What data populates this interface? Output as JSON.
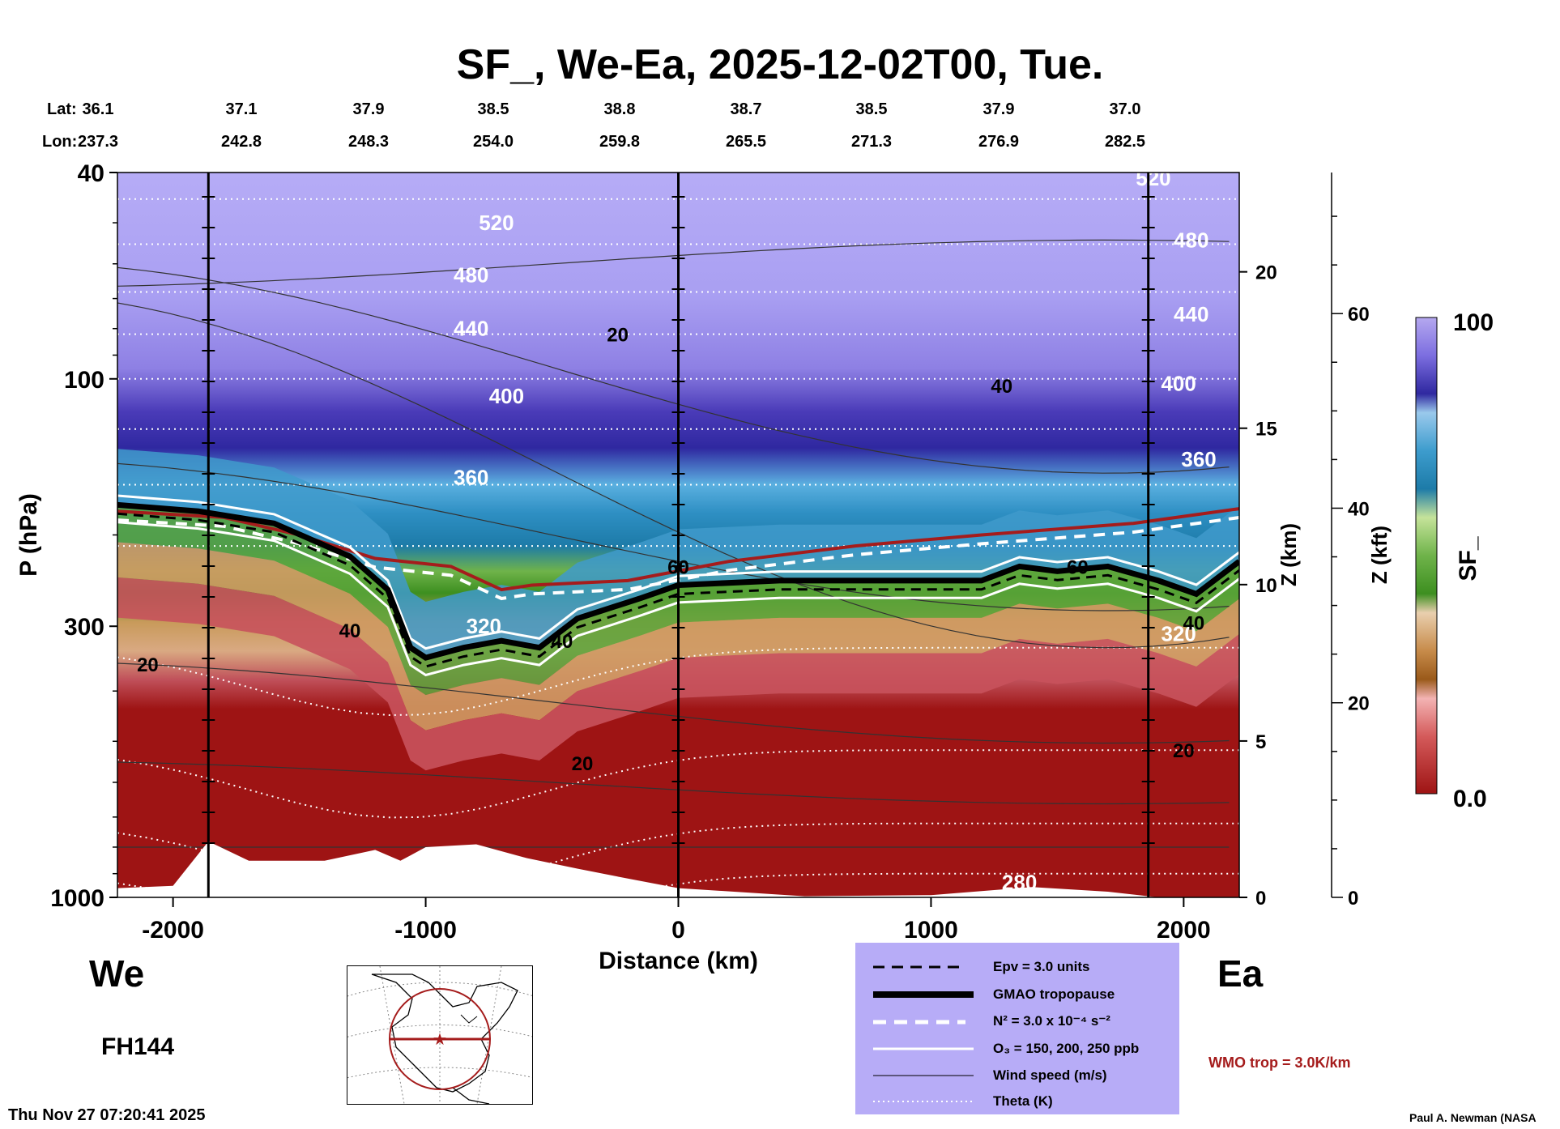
{
  "chart_data": {
    "type": "heatmap",
    "title": "SF_, We-Ea, 2025-12-02T00, Tue.",
    "xlabel": "Distance (km)",
    "ylabel": "P (hPa)",
    "y2label": "Z (km)",
    "y3label": "Z (kft)",
    "colorbar_label": "SF_",
    "colorbar_range": [
      0.0,
      100
    ],
    "colorbar_labels": [
      "100",
      "0.0"
    ],
    "xlim": [
      -2220,
      2220
    ],
    "ylim": [
      1000,
      40
    ],
    "y_scale": "log",
    "x_ticks": [
      -2000,
      -1000,
      0,
      1000,
      2000
    ],
    "x_tick_labels": [
      "-2000",
      "-1000",
      "0",
      "1000",
      "2000"
    ],
    "y_ticks": [
      40,
      100,
      300,
      1000
    ],
    "y_tick_labels": [
      "40",
      "100",
      "300",
      "1000"
    ],
    "z_km_ticks": [
      0,
      5,
      10,
      15,
      20
    ],
    "z_km_tick_labels": [
      "0",
      "5",
      "10",
      "15",
      "20"
    ],
    "z_kft_ticks": [
      0,
      20,
      40,
      60
    ],
    "z_kft_tick_labels": [
      "0",
      "20",
      "40",
      "60"
    ],
    "lat_label": "Lat:",
    "lon_label": "Lon:",
    "lats": [
      "36.1",
      "37.1",
      "37.9",
      "38.5",
      "38.8",
      "38.7",
      "38.5",
      "37.9",
      "37.0"
    ],
    "lons": [
      "237.3",
      "242.8",
      "248.3",
      "254.0",
      "259.8",
      "265.5",
      "271.3",
      "276.9",
      "282.5"
    ],
    "theta_labels": [
      {
        "text": "520",
        "x": -720,
        "p": 50
      },
      {
        "text": "480",
        "x": -820,
        "p": 63
      },
      {
        "text": "440",
        "x": -820,
        "p": 80
      },
      {
        "text": "400",
        "x": -680,
        "p": 108
      },
      {
        "text": "360",
        "x": -820,
        "p": 155
      },
      {
        "text": "320",
        "x": -770,
        "p": 300
      },
      {
        "text": "280",
        "x": 1350,
        "p": 935
      },
      {
        "text": "520",
        "x": 1880,
        "p": 41
      },
      {
        "text": "480",
        "x": 2030,
        "p": 54
      },
      {
        "text": "440",
        "x": 2030,
        "p": 75
      },
      {
        "text": "400",
        "x": 1980,
        "p": 102
      },
      {
        "text": "360",
        "x": 2060,
        "p": 143
      },
      {
        "text": "320",
        "x": 1980,
        "p": 310
      }
    ],
    "wind_labels": [
      {
        "text": "20",
        "x": -240,
        "p": 82
      },
      {
        "text": "40",
        "x": 1280,
        "p": 103
      },
      {
        "text": "60",
        "x": 1580,
        "p": 230
      },
      {
        "text": "60",
        "x": 0,
        "p": 230
      },
      {
        "text": "40",
        "x": -1300,
        "p": 305
      },
      {
        "text": "40",
        "x": -460,
        "p": 320
      },
      {
        "text": "20",
        "x": -2100,
        "p": 355
      },
      {
        "text": "20",
        "x": -380,
        "p": 550
      },
      {
        "text": "40",
        "x": 2040,
        "p": 295
      },
      {
        "text": "20",
        "x": 2000,
        "p": 520
      }
    ],
    "vertical_markers_km": [
      -1860,
      0,
      1860
    ],
    "surface_profile": [
      {
        "x": -2220,
        "p": 960
      },
      {
        "x": -2000,
        "p": 950
      },
      {
        "x": -1860,
        "p": 780
      },
      {
        "x": -1700,
        "p": 850
      },
      {
        "x": -1400,
        "p": 850
      },
      {
        "x": -1200,
        "p": 810
      },
      {
        "x": -1100,
        "p": 850
      },
      {
        "x": -1000,
        "p": 800
      },
      {
        "x": -800,
        "p": 790
      },
      {
        "x": -600,
        "p": 840
      },
      {
        "x": -400,
        "p": 880
      },
      {
        "x": -200,
        "p": 920
      },
      {
        "x": 0,
        "p": 960
      },
      {
        "x": 500,
        "p": 995
      },
      {
        "x": 1000,
        "p": 990
      },
      {
        "x": 1400,
        "p": 955
      },
      {
        "x": 1700,
        "p": 975
      },
      {
        "x": 1900,
        "p": 1000
      },
      {
        "x": 2220,
        "p": 1000
      }
    ],
    "gmao_tropopause": [
      {
        "x": -2220,
        "p": 175
      },
      {
        "x": -1900,
        "p": 180
      },
      {
        "x": -1600,
        "p": 190
      },
      {
        "x": -1300,
        "p": 220
      },
      {
        "x": -1150,
        "p": 255
      },
      {
        "x": -1060,
        "p": 330
      },
      {
        "x": -1000,
        "p": 345
      },
      {
        "x": -850,
        "p": 330
      },
      {
        "x": -700,
        "p": 320
      },
      {
        "x": -550,
        "p": 330
      },
      {
        "x": -400,
        "p": 290
      },
      {
        "x": -150,
        "p": 265
      },
      {
        "x": 0,
        "p": 250
      },
      {
        "x": 400,
        "p": 245
      },
      {
        "x": 800,
        "p": 245
      },
      {
        "x": 1200,
        "p": 245
      },
      {
        "x": 1350,
        "p": 230
      },
      {
        "x": 1500,
        "p": 235
      },
      {
        "x": 1700,
        "p": 230
      },
      {
        "x": 1900,
        "p": 245
      },
      {
        "x": 2050,
        "p": 260
      },
      {
        "x": 2220,
        "p": 225
      }
    ],
    "wmo_tropopause": [
      {
        "x": -2220,
        "p": 180
      },
      {
        "x": -1800,
        "p": 185
      },
      {
        "x": -1500,
        "p": 200
      },
      {
        "x": -1200,
        "p": 222
      },
      {
        "x": -900,
        "p": 230
      },
      {
        "x": -700,
        "p": 255
      },
      {
        "x": -580,
        "p": 250
      },
      {
        "x": -200,
        "p": 245
      },
      {
        "x": 200,
        "p": 225
      },
      {
        "x": 700,
        "p": 210
      },
      {
        "x": 1200,
        "p": 200
      },
      {
        "x": 1800,
        "p": 190
      },
      {
        "x": 2220,
        "p": 178
      }
    ]
  },
  "coord_header": {
    "lat_label": "Lat:",
    "lon_label": "Lon:"
  },
  "labels": {
    "west": "We",
    "east": "Ea",
    "forecast_hour": "FH144",
    "timestamp": "Thu Nov 27 07:20:41 2025",
    "credit": "Paul A. Newman (NASA",
    "wmo_trop": "WMO trop = 3.0K/km"
  },
  "legend": {
    "epv": "Epv = 3.0 units",
    "gmao": "GMAO tropopause",
    "n2": "N² = 3.0 x 10⁻⁴ s⁻²",
    "o3": "O₃ = 150, 200, 250 ppb",
    "wind": "Wind speed (m/s)",
    "theta": "Theta (K)"
  },
  "colors": {
    "colorbar_top": "#5a4ad0",
    "colorbar_bottom": "#9e1414",
    "legend_bg": "#b7acf7",
    "wmo_line": "#a51c1c"
  }
}
